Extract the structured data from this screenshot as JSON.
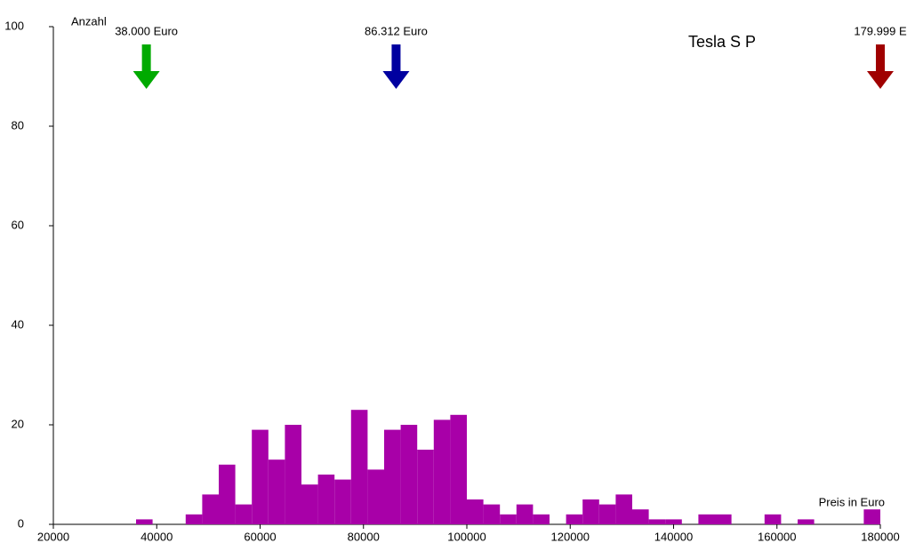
{
  "chart_data": {
    "type": "histogram",
    "title": "Tesla S P",
    "x_label": "Preis in Euro",
    "y_label": "Anzahl",
    "bins": [
      20000,
      23200,
      26400,
      29600,
      32800,
      36000,
      39200,
      42400,
      45600,
      48800,
      52000,
      55200,
      58400,
      61600,
      64800,
      68000,
      71200,
      74400,
      77600,
      80800,
      84000,
      87200,
      90400,
      93600,
      96800,
      100000,
      103200,
      106400,
      109600,
      112800,
      116000,
      119200,
      122400,
      125600,
      128800,
      132000,
      135200,
      138400,
      141600,
      144800,
      148000,
      151200,
      154400,
      157600,
      160800,
      164000,
      167200,
      170400,
      173600,
      176800,
      180000
    ],
    "values": [
      0,
      0,
      0,
      0,
      0,
      1,
      0,
      0,
      2,
      6,
      12,
      4,
      19,
      13,
      20,
      8,
      10,
      9,
      23,
      11,
      19,
      20,
      15,
      21,
      22,
      5,
      4,
      2,
      4,
      2,
      0,
      2,
      5,
      4,
      6,
      3,
      1,
      1,
      0,
      2,
      2,
      0,
      0,
      2,
      0,
      1,
      0,
      0,
      0,
      3
    ],
    "color": "#a800a8",
    "xlim": [
      20000,
      180000
    ],
    "xticks": [
      20000,
      40000,
      60000,
      80000,
      100000,
      120000,
      140000,
      160000,
      180000
    ],
    "ylim": [
      0,
      100
    ],
    "yticks": [
      0,
      20,
      40,
      60,
      80,
      100
    ],
    "markers": [
      {
        "value": 38000,
        "label": "38.000 Euro",
        "color": "#00aa00"
      },
      {
        "value": 86312,
        "label": "86.312 Euro",
        "color": "#0000a0"
      },
      {
        "value": 179999,
        "label": "179.999 E",
        "color": "#a00000"
      }
    ]
  }
}
